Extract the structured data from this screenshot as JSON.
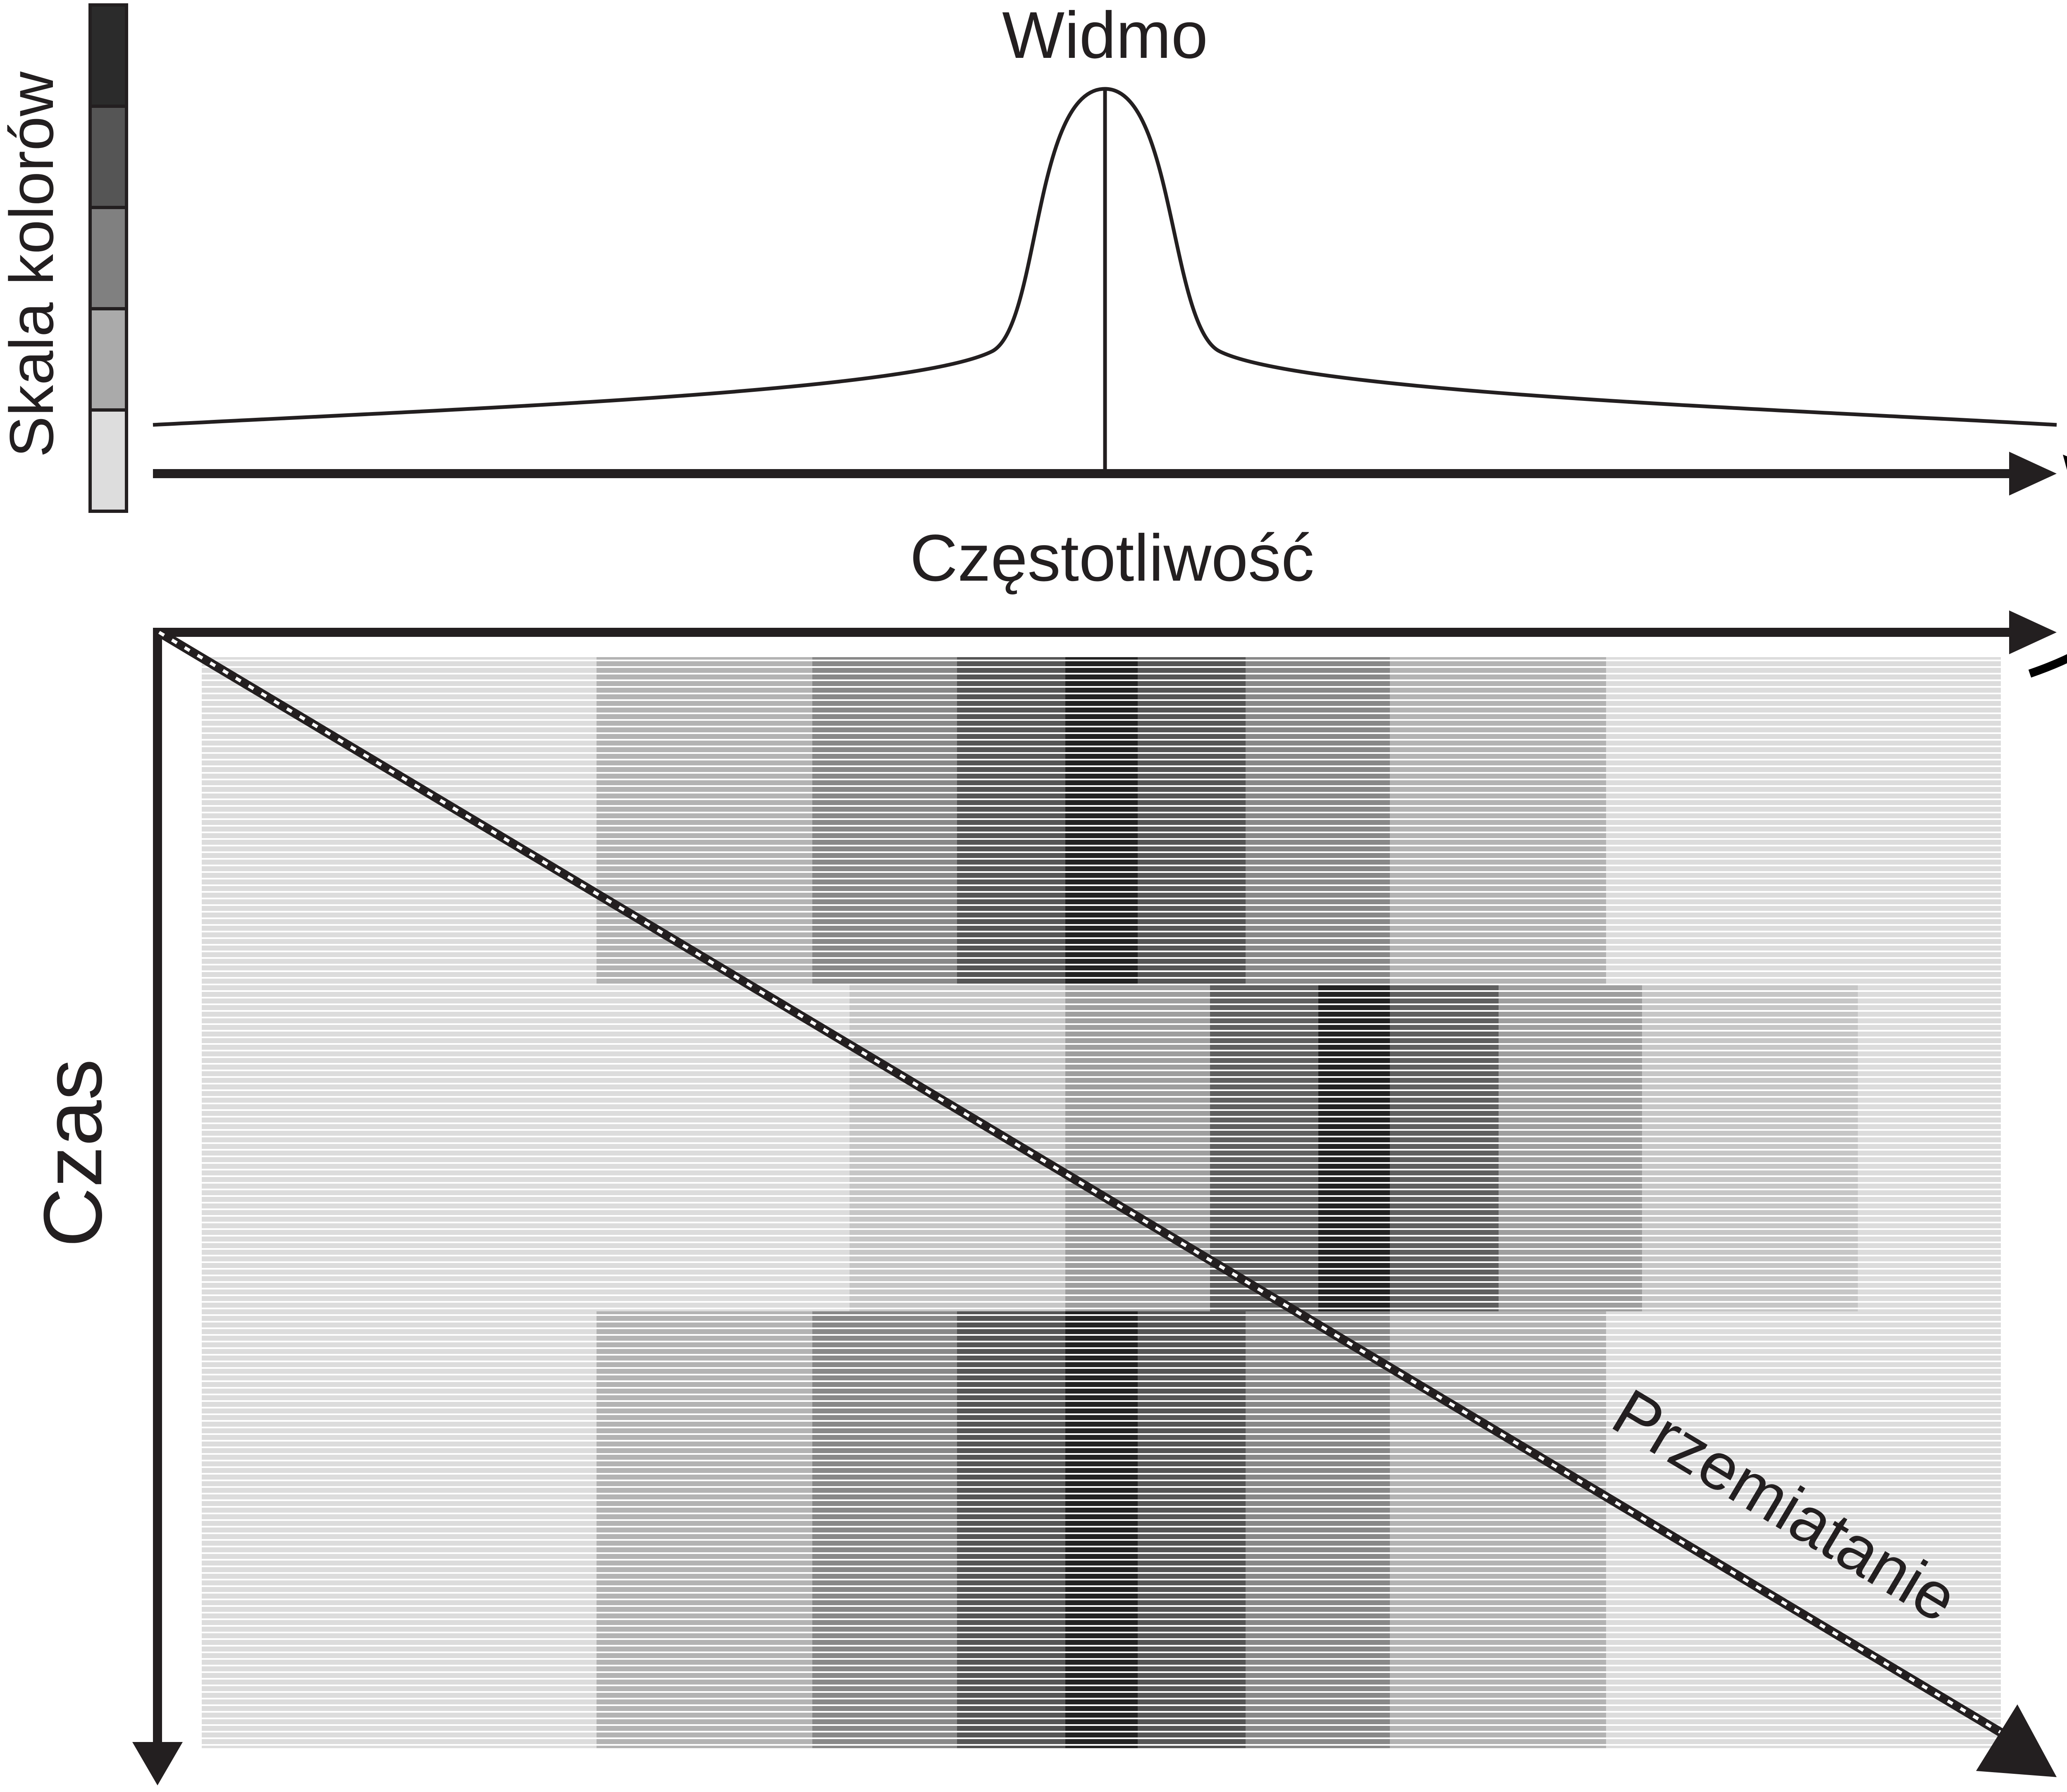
{
  "labels": {
    "color_scale": "Skala kolorów",
    "spectrum": "Widmo",
    "frequency": "Częstotliwość",
    "time": "Czas",
    "sweep": "Przemiatanie"
  },
  "colors": {
    "ink": "#231f20",
    "scale": [
      "#2b2b2b",
      "#555555",
      "#808080",
      "#aaaaaa",
      "#dddddd"
    ],
    "background_band": "#dcdcdc"
  },
  "waterfall": {
    "bands": [
      {
        "name": "band-1",
        "segments": [
          {
            "shade": "#dcdcdc"
          },
          {
            "shade": "#b3b3b3"
          },
          {
            "shade": "#888888"
          },
          {
            "shade": "#555555"
          },
          {
            "shade": "#232323"
          },
          {
            "shade": "#555555"
          },
          {
            "shade": "#888888"
          },
          {
            "shade": "#b3b3b3"
          },
          {
            "shade": "#dcdcdc"
          }
        ]
      },
      {
        "name": "band-2",
        "segments": [
          {
            "shade": "#dcdcdc"
          },
          {
            "shade": "#c6c6c6"
          },
          {
            "shade": "#9e9e9e"
          },
          {
            "shade": "#5f5f5f"
          },
          {
            "shade": "#232323"
          },
          {
            "shade": "#5f5f5f"
          },
          {
            "shade": "#9e9e9e"
          },
          {
            "shade": "#c6c6c6"
          },
          {
            "shade": "#dcdcdc"
          }
        ]
      },
      {
        "name": "band-3",
        "segments": [
          {
            "shade": "#dcdcdc"
          },
          {
            "shade": "#b3b3b3"
          },
          {
            "shade": "#888888"
          },
          {
            "shade": "#555555"
          },
          {
            "shade": "#232323"
          },
          {
            "shade": "#555555"
          },
          {
            "shade": "#888888"
          },
          {
            "shade": "#b3b3b3"
          },
          {
            "shade": "#dcdcdc"
          }
        ]
      }
    ]
  }
}
